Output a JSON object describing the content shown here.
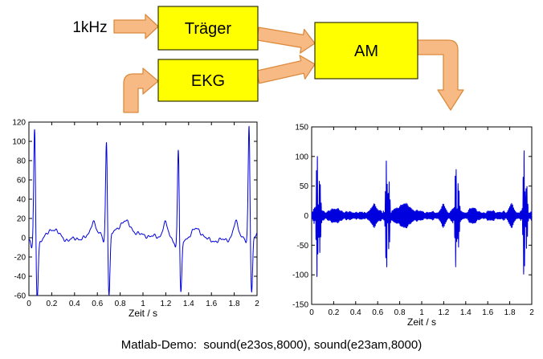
{
  "diagram": {
    "input_label": "1kHz",
    "blocks": {
      "traeger": {
        "label": "Träger"
      },
      "ekg": {
        "label": "EKG"
      },
      "am": {
        "label": "AM"
      }
    },
    "colors": {
      "block_fill": "#FFFF00",
      "block_stroke": "#333300",
      "arrow_fill": "#F8BA84",
      "arrow_stroke": "#DB8B3D"
    }
  },
  "chart_data": [
    {
      "type": "line",
      "name": "ekg",
      "title": "",
      "xlabel": "Zeit / s",
      "ylabel": "",
      "xlim": [
        0,
        2
      ],
      "ylim": [
        -60,
        120
      ],
      "xticks": [
        0,
        0.2,
        0.4,
        0.6,
        0.8,
        1,
        1.2,
        1.4,
        1.6,
        1.8,
        2
      ],
      "yticks": [
        -60,
        -40,
        -20,
        0,
        20,
        40,
        60,
        80,
        100,
        120
      ],
      "line_color": "#0000DE",
      "grid": false,
      "legend": "none",
      "signal": {
        "kind": "ecg",
        "beats": [
          {
            "t": 0.05,
            "r": 118,
            "s": -60
          },
          {
            "t": 0.68,
            "r": 100,
            "s": -63
          },
          {
            "t": 1.31,
            "r": 96,
            "s": -56
          },
          {
            "t": 1.93,
            "r": 116,
            "s": -60
          }
        ],
        "p_amplitude": 16,
        "q_depth": -8,
        "t_amplitude": 13,
        "baseline_wander": 4
      }
    },
    {
      "type": "line",
      "name": "am",
      "title": "",
      "xlabel": "Zeit / s",
      "ylabel": "",
      "xlim": [
        0,
        2
      ],
      "ylim": [
        -150,
        150
      ],
      "xticks": [
        0,
        0.2,
        0.4,
        0.6,
        0.8,
        1,
        1.2,
        1.4,
        1.6,
        1.8,
        2
      ],
      "yticks": [
        -150,
        -100,
        -50,
        0,
        50,
        100,
        150
      ],
      "line_color": "#0000DE",
      "grid": false,
      "legend": "none",
      "signal": {
        "kind": "am",
        "carrier_hz": 1000,
        "display_carrier_hz": 115,
        "envelope": "abs(ekg)",
        "envelope_scale": 0.92,
        "envelope_offset": 4
      }
    }
  ],
  "caption": "Matlab-Demo:  sound(e23os,8000), sound(e23am,8000)"
}
